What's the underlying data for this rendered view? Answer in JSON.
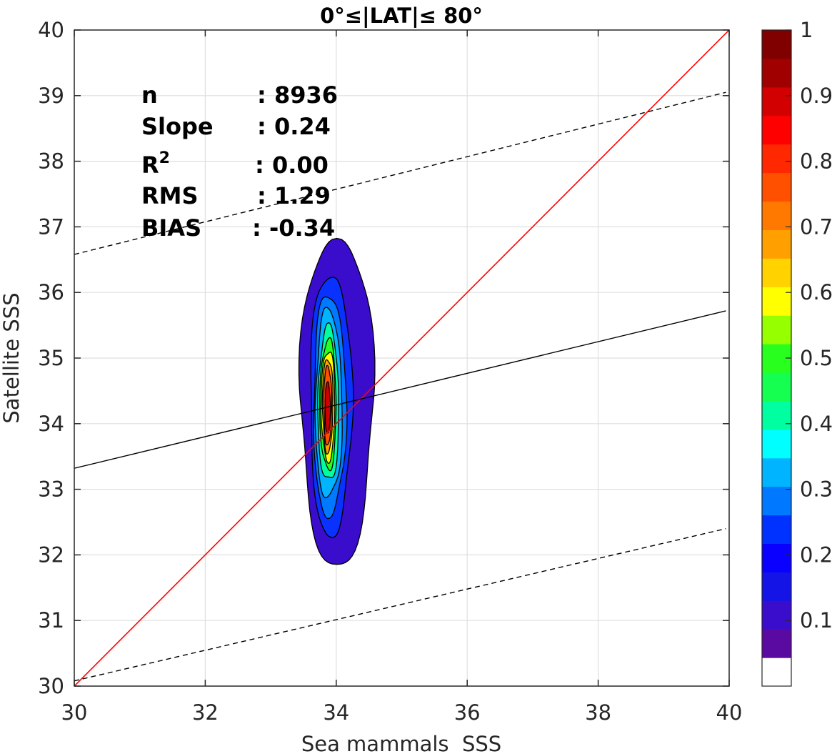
{
  "chart_data": {
    "type": "contour",
    "title": "0°≤|LAT|≤ 80°",
    "xlabel": "Sea mammals  SSS",
    "ylabel": "Satellite SSS",
    "xlim": [
      30,
      40
    ],
    "ylim": [
      30,
      40
    ],
    "x_ticks": [
      30,
      32,
      34,
      36,
      38,
      40
    ],
    "y_ticks": [
      30,
      31,
      32,
      33,
      34,
      35,
      36,
      37,
      38,
      39,
      40
    ],
    "grid": true,
    "stats": [
      {
        "label": "n",
        "value": ": 8936"
      },
      {
        "label": "Slope",
        "value": ": 0.24"
      },
      {
        "label": "R",
        "sup": "2",
        "value": ": 0.00"
      },
      {
        "label": "RMS",
        "value": ": 1.29"
      },
      {
        "label": "BIAS",
        "value": ": -0.34"
      }
    ],
    "lines": [
      {
        "role": "one-to-one",
        "color": "#ff0000",
        "style": "solid",
        "points": [
          [
            30,
            30
          ],
          [
            40,
            40
          ]
        ]
      },
      {
        "role": "regression",
        "color": "#000000",
        "style": "solid",
        "points": [
          [
            30,
            33.32
          ],
          [
            39.95,
            35.72
          ]
        ]
      },
      {
        "role": "upper-bound",
        "color": "#000000",
        "style": "dashed",
        "points": [
          [
            30,
            36.58
          ],
          [
            39.95,
            39.05
          ]
        ]
      },
      {
        "role": "lower-bound",
        "color": "#000000",
        "style": "dashed",
        "points": [
          [
            30,
            30.08
          ],
          [
            39.95,
            32.4
          ]
        ]
      }
    ],
    "density": {
      "center": [
        33.87,
        34.2
      ],
      "levels": [
        {
          "level": 0.05,
          "color": "#3a0ccc",
          "x_range": [
            33.45,
            34.57
          ],
          "y_range": [
            31.88,
            36.85
          ]
        },
        {
          "level": 0.15,
          "color": "#0a32ff",
          "x_range": [
            33.6,
            34.24
          ],
          "y_range": [
            32.32,
            36.28
          ]
        },
        {
          "level": 0.25,
          "color": "#0078ff",
          "x_range": [
            33.65,
            34.15
          ],
          "y_range": [
            32.6,
            35.95
          ]
        },
        {
          "level": 0.3,
          "color": "#00b4ff",
          "x_range": [
            33.68,
            34.09
          ],
          "y_range": [
            32.85,
            35.7
          ]
        },
        {
          "level": 0.4,
          "color": "#00ffa0",
          "x_range": [
            33.72,
            34.04
          ],
          "y_range": [
            33.1,
            35.45
          ]
        },
        {
          "level": 0.5,
          "color": "#28ff1e",
          "x_range": [
            33.75,
            34.0
          ],
          "y_range": [
            33.3,
            35.27
          ]
        },
        {
          "level": 0.6,
          "color": "#ffff00",
          "x_range": [
            33.77,
            33.98
          ],
          "y_range": [
            33.45,
            35.12
          ]
        },
        {
          "level": 0.7,
          "color": "#ffa000",
          "x_range": [
            33.79,
            33.95
          ],
          "y_range": [
            33.58,
            35.0
          ]
        },
        {
          "level": 0.8,
          "color": "#ff5000",
          "x_range": [
            33.81,
            33.93
          ],
          "y_range": [
            33.68,
            34.88
          ]
        },
        {
          "level": 0.9,
          "color": "#d20000",
          "x_range": [
            33.83,
            33.91
          ],
          "y_range": [
            33.85,
            34.63
          ]
        }
      ]
    },
    "colorbar": {
      "ticks": [
        0.1,
        0.2,
        0.3,
        0.4,
        0.5,
        0.6,
        0.7,
        0.8,
        0.9,
        1
      ],
      "tick_labels": [
        "0.1",
        "0.2",
        "0.3",
        "0.4",
        "0.5",
        "0.6",
        "0.7",
        "0.8",
        "0.9",
        "1"
      ],
      "range": [
        0,
        1
      ],
      "colors": [
        "#ffffff",
        "#5a0aa0",
        "#3a0ccc",
        "#1414e6",
        "#0a00ff",
        "#0032ff",
        "#0078ff",
        "#00b4ff",
        "#00ffff",
        "#00ffa0",
        "#14ff50",
        "#28ff1e",
        "#96ff00",
        "#ffff00",
        "#ffd200",
        "#ffa000",
        "#ff7800",
        "#ff5000",
        "#ff2800",
        "#ff0000",
        "#d20000",
        "#a00000",
        "#800000"
      ]
    }
  }
}
